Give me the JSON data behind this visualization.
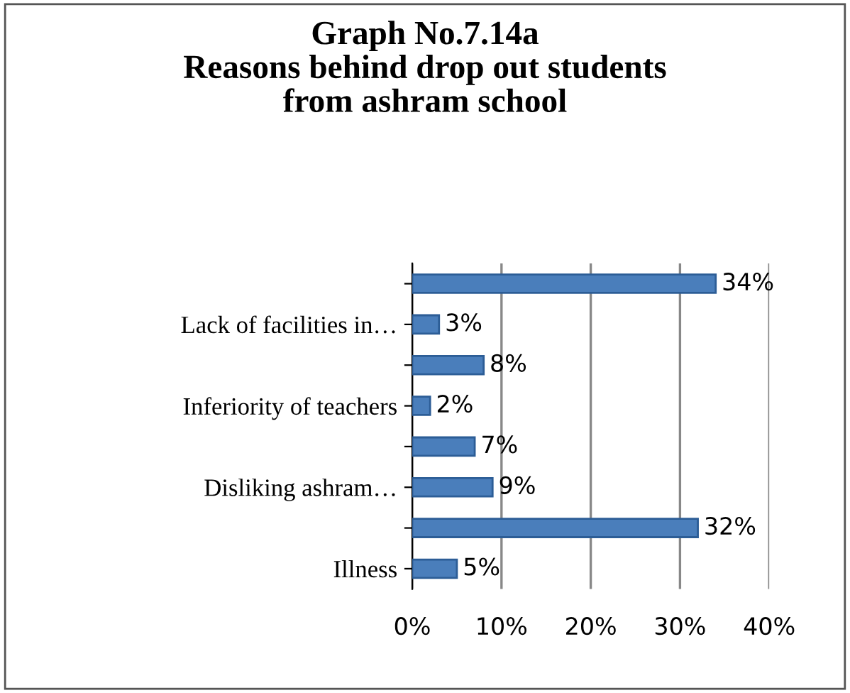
{
  "chart_data": {
    "type": "bar",
    "orientation": "horizontal",
    "title": "Graph No.7.14a\nReasons behind drop out students\nfrom ashram school",
    "categories": [
      null,
      "Lack of facilities in…",
      null,
      "Inferiority of teachers",
      null,
      "Disliking ashram…",
      null,
      "Illness"
    ],
    "values": [
      34,
      3,
      8,
      2,
      7,
      9,
      32,
      5
    ],
    "value_labels": [
      "34%",
      "3%",
      "8%",
      "2%",
      "7%",
      "9%",
      "32%",
      "5%"
    ],
    "color": "#4a7ebb",
    "xlim": [
      0,
      40
    ],
    "xticks": [
      {
        "value": 0,
        "label": "0%"
      },
      {
        "value": 10,
        "label": "10%"
      },
      {
        "value": 20,
        "label": "20%"
      },
      {
        "value": 30,
        "label": "30%"
      },
      {
        "value": 40,
        "label": "40%"
      }
    ],
    "grid": "x",
    "legend": false
  }
}
